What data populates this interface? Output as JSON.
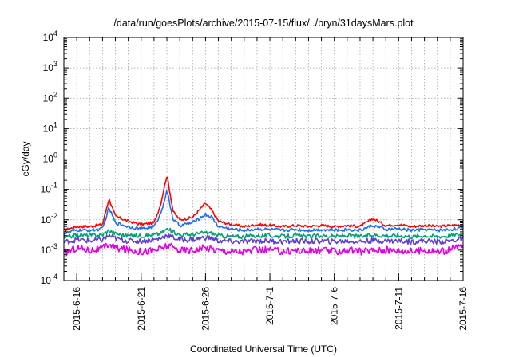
{
  "chart_data": {
    "type": "line",
    "title": "/data/run/goesPlots/archive/2015-07-15/flux/../bryn/31daysMars.plot",
    "xlabel": "Coordinated Universal Time (UTC)",
    "ylabel": "cGy/day",
    "yscale": "log",
    "ylim": [
      0.0001,
      10000
    ],
    "xlim": [
      "2015-06-15",
      "2015-07-16"
    ],
    "grid": true,
    "legend": "none",
    "x_ticks": [
      "2015-6-16",
      "2015-6-21",
      "2015-6-26",
      "2015-7-1",
      "2015-7-6",
      "2015-7-11",
      "2015-7-16"
    ],
    "y_ticks": [
      {
        "base": "10",
        "exp": "-4"
      },
      {
        "base": "10",
        "exp": "-3"
      },
      {
        "base": "10",
        "exp": "-2"
      },
      {
        "base": "10",
        "exp": "-1"
      },
      {
        "base": "10",
        "exp": "0"
      },
      {
        "base": "10",
        "exp": "1"
      },
      {
        "base": "10",
        "exp": "2"
      },
      {
        "base": "10",
        "exp": "3"
      },
      {
        "base": "10",
        "exp": "4"
      }
    ],
    "x": [
      "2015-06-15",
      "2015-06-16",
      "2015-06-17",
      "2015-06-18",
      "2015-06-18T12:00",
      "2015-06-19",
      "2015-06-20",
      "2015-06-21",
      "2015-06-22",
      "2015-06-22T12:00",
      "2015-06-23",
      "2015-06-23T12:00",
      "2015-06-24",
      "2015-06-25",
      "2015-06-26",
      "2015-06-26T12:00",
      "2015-06-27",
      "2015-06-28",
      "2015-06-29",
      "2015-06-30",
      "2015-07-01",
      "2015-07-02",
      "2015-07-03",
      "2015-07-04",
      "2015-07-05",
      "2015-07-06",
      "2015-07-07",
      "2015-07-08",
      "2015-07-09",
      "2015-07-10",
      "2015-07-11",
      "2015-07-12",
      "2015-07-13",
      "2015-07-14",
      "2015-07-15",
      "2015-07-16"
    ],
    "series": [
      {
        "color": "#ff0000",
        "values": [
          0.0045,
          0.006,
          0.006,
          0.007,
          0.05,
          0.013,
          0.009,
          0.007,
          0.008,
          0.03,
          0.3,
          0.018,
          0.01,
          0.012,
          0.035,
          0.02,
          0.009,
          0.007,
          0.006,
          0.007,
          0.0065,
          0.006,
          0.0065,
          0.006,
          0.0065,
          0.006,
          0.0065,
          0.006,
          0.011,
          0.0065,
          0.007,
          0.006,
          0.0065,
          0.006,
          0.0065,
          0.007
        ]
      },
      {
        "color": "#1a6ef5",
        "values": [
          0.0035,
          0.0045,
          0.0045,
          0.005,
          0.025,
          0.008,
          0.006,
          0.005,
          0.006,
          0.015,
          0.09,
          0.01,
          0.0065,
          0.008,
          0.015,
          0.012,
          0.006,
          0.005,
          0.0045,
          0.005,
          0.0048,
          0.0045,
          0.0048,
          0.0045,
          0.0048,
          0.0045,
          0.0048,
          0.0045,
          0.0065,
          0.0048,
          0.005,
          0.0045,
          0.0048,
          0.0045,
          0.0048,
          0.0055
        ]
      },
      {
        "color": "#00a070",
        "values": [
          0.0025,
          0.0032,
          0.003,
          0.0032,
          0.0045,
          0.0035,
          0.003,
          0.003,
          0.0032,
          0.0035,
          0.005,
          0.004,
          0.0032,
          0.0033,
          0.0038,
          0.0036,
          0.003,
          0.0028,
          0.0028,
          0.003,
          0.003,
          0.0028,
          0.003,
          0.0028,
          0.003,
          0.0028,
          0.003,
          0.0028,
          0.0032,
          0.003,
          0.003,
          0.0028,
          0.003,
          0.0028,
          0.003,
          0.0035
        ]
      },
      {
        "color": "#5a3fd0",
        "values": [
          0.0018,
          0.0022,
          0.002,
          0.0022,
          0.003,
          0.0024,
          0.002,
          0.002,
          0.0022,
          0.0024,
          0.0032,
          0.0026,
          0.0022,
          0.0022,
          0.0026,
          0.0024,
          0.002,
          0.0019,
          0.0019,
          0.002,
          0.002,
          0.0019,
          0.002,
          0.0019,
          0.002,
          0.0019,
          0.002,
          0.0019,
          0.0021,
          0.002,
          0.002,
          0.0019,
          0.002,
          0.0019,
          0.002,
          0.0024
        ]
      },
      {
        "color": "#e000e0",
        "values": [
          0.0008,
          0.0012,
          0.001,
          0.0011,
          0.0016,
          0.0012,
          0.001,
          0.0009,
          0.001,
          0.0011,
          0.0014,
          0.0012,
          0.001,
          0.001,
          0.0012,
          0.0011,
          0.001,
          0.0009,
          0.0009,
          0.001,
          0.001,
          0.0009,
          0.001,
          0.0009,
          0.001,
          0.0009,
          0.001,
          0.0009,
          0.001,
          0.001,
          0.001,
          0.0009,
          0.001,
          0.0009,
          0.001,
          0.0015
        ]
      }
    ]
  }
}
